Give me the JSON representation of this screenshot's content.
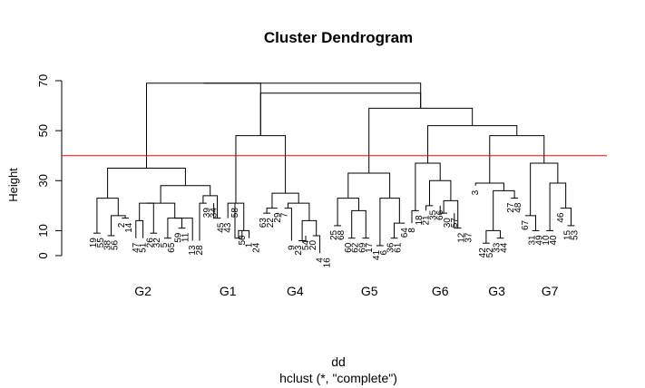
{
  "chart_data": {
    "type": "dendrogram",
    "title": "Cluster Dendrogram",
    "xlabel": "dd",
    "sub": "hclust (*, \"complete\")",
    "ylabel": "Height",
    "ylim": [
      0,
      70
    ],
    "yticks": [
      0,
      10,
      30,
      50,
      70
    ],
    "cut_height": 40,
    "cut_color": "#ff0000",
    "leaf_order": [
      19,
      55,
      38,
      56,
      2,
      14,
      47,
      51,
      26,
      32,
      5,
      65,
      59,
      11,
      13,
      28,
      39,
      34,
      45,
      43,
      58,
      50,
      1,
      24,
      63,
      22,
      29,
      7,
      9,
      23,
      54,
      20,
      4,
      16,
      25,
      68,
      60,
      62,
      69,
      17,
      41,
      6,
      36,
      61,
      64,
      8,
      18,
      21,
      35,
      66,
      30,
      57,
      12,
      37,
      3,
      42,
      52,
      33,
      44,
      27,
      48,
      67,
      31,
      49,
      10,
      40,
      46,
      15,
      53
    ],
    "leaf_heights": [
      9,
      9,
      8,
      8,
      15,
      15,
      7,
      7,
      9,
      9,
      7,
      7,
      11,
      11,
      6,
      6,
      21,
      21,
      15,
      15,
      21,
      10,
      7,
      7,
      17,
      17,
      19,
      19,
      6,
      6,
      8,
      8,
      1,
      1,
      12,
      12,
      7,
      7,
      7,
      7,
      4,
      4,
      7,
      7,
      13,
      13,
      18,
      18,
      20,
      20,
      17,
      17,
      11,
      11,
      28,
      5,
      5,
      7,
      7,
      23,
      23,
      16,
      10,
      10,
      10,
      10,
      19,
      12,
      12
    ],
    "merges": [
      [
        1,
        2,
        9
      ],
      [
        3,
        4,
        8
      ],
      [
        5,
        6,
        15
      ],
      [
        7,
        8,
        7
      ],
      [
        9,
        10,
        9
      ],
      [
        11,
        12,
        7
      ],
      [
        13,
        14,
        5
      ],
      [
        -2,
        -3,
        16
      ],
      [
        -4,
        -5,
        14
      ],
      [
        -6,
        -7,
        12
      ],
      [
        -8,
        -9,
        21
      ],
      [
        -10,
        -11,
        15
      ],
      [
        -12,
        -13,
        23
      ],
      [
        -14,
        -15,
        21
      ],
      [
        -16,
        -17,
        28
      ],
      [
        -18,
        -19,
        35
      ],
      [
        21,
        22,
        7
      ],
      [
        23,
        24,
        7
      ],
      [
        25,
        26,
        17
      ],
      [
        27,
        28,
        19
      ],
      [
        29,
        30,
        6
      ],
      [
        31,
        32,
        8
      ],
      [
        33,
        34,
        1
      ],
      [
        35,
        36,
        12
      ],
      [
        37,
        38,
        7
      ],
      [
        39,
        40,
        7
      ],
      [
        41,
        42,
        4
      ],
      [
        43,
        44,
        7
      ],
      [
        45,
        46,
        13
      ],
      [
        47,
        48,
        18
      ],
      [
        49,
        50,
        20
      ],
      [
        51,
        52,
        17
      ],
      [
        53,
        54,
        11
      ],
      [
        56,
        57,
        5
      ],
      [
        58,
        59,
        7
      ],
      [
        60,
        61,
        23
      ],
      [
        63,
        64,
        10
      ],
      [
        65,
        66,
        10
      ],
      [
        68,
        69,
        12
      ]
    ],
    "groups": [
      {
        "label": "G2",
        "from": 1,
        "to": 15
      },
      {
        "label": "G1",
        "from": 16,
        "to": 24
      },
      {
        "label": "G4",
        "from": 25,
        "to": 34
      },
      {
        "label": "G5",
        "from": 35,
        "to": 45
      },
      {
        "label": "G6",
        "from": 46,
        "to": 54
      },
      {
        "label": "G3",
        "from": 55,
        "to": 61
      },
      {
        "label": "G7",
        "from": 62,
        "to": 69
      }
    ]
  }
}
